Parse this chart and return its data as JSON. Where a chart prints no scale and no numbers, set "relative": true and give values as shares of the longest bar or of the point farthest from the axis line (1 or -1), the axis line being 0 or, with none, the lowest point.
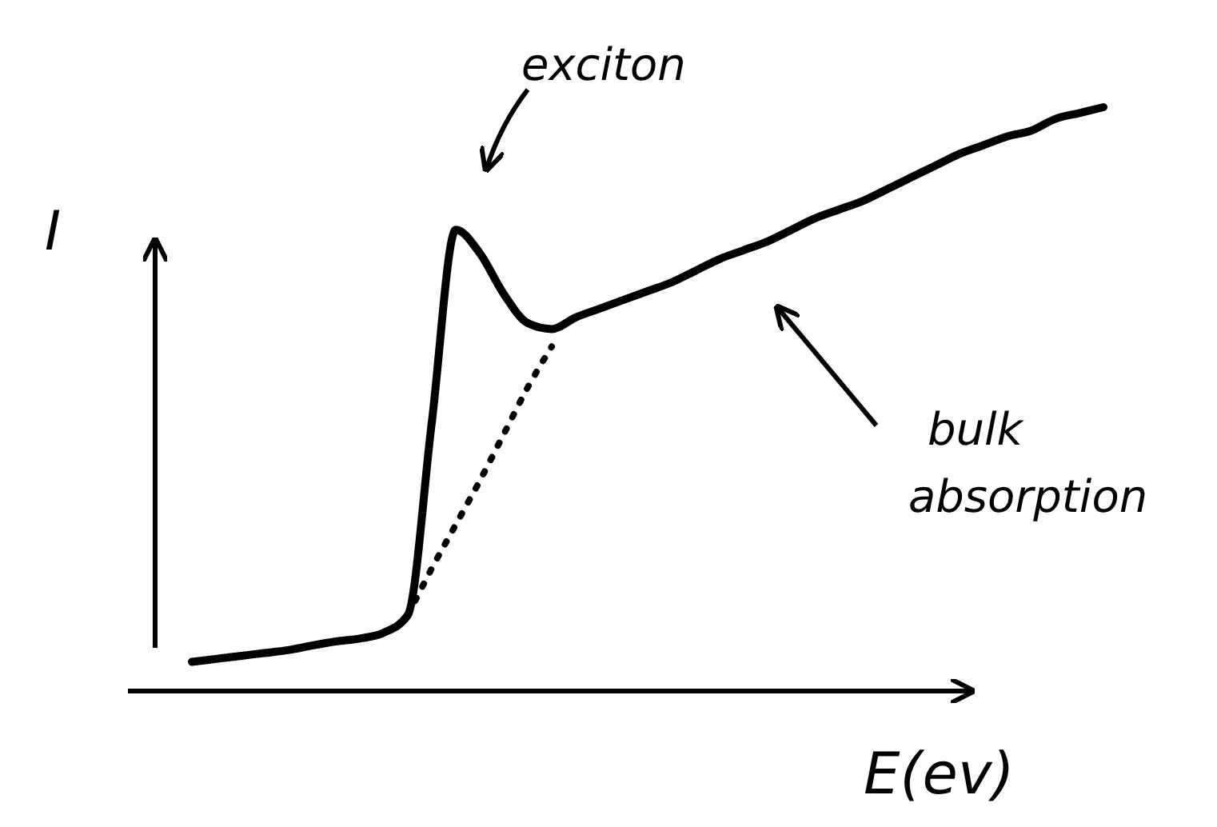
{
  "chart_data": {
    "type": "line",
    "xlabel": "E(ev)",
    "ylabel": "I",
    "relative": true,
    "categories": [
      null,
      null,
      null,
      null,
      null,
      null,
      null,
      null,
      null,
      null,
      null,
      null,
      null,
      null,
      null,
      null,
      null,
      null,
      null,
      null,
      null,
      null,
      null,
      null,
      null,
      null,
      null,
      null,
      null,
      null,
      null,
      null,
      null,
      null,
      null,
      null,
      null,
      null,
      null
    ],
    "series": [
      {
        "color": "#000000",
        "line_style": "solid",
        "values": [
          0.05,
          0.055,
          0.06,
          0.065,
          0.07,
          0.078,
          0.085,
          0.09,
          0.1,
          0.13,
          0.46,
          0.79,
          0.75,
          0.68,
          0.63,
          0.62,
          0.64,
          0.655,
          0.67,
          0.685,
          0.7,
          0.72,
          0.74,
          0.755,
          0.77,
          0.79,
          0.81,
          0.825,
          0.84,
          0.86,
          0.88,
          0.9,
          0.92,
          0.935,
          0.95,
          0.96,
          0.98,
          0.99,
          1.0
        ]
      },
      {
        "color": "#000000",
        "line_style": "dotted",
        "values": [
          null,
          null,
          null,
          null,
          null,
          null,
          null,
          null,
          null,
          0.13,
          0.21,
          0.285,
          0.36,
          0.44,
          0.52,
          0.59,
          null,
          null,
          null,
          null,
          null,
          null,
          null,
          null,
          null,
          null,
          null,
          null,
          null,
          null,
          null,
          null,
          null,
          null,
          null,
          null,
          null,
          null,
          null
        ]
      }
    ],
    "annotations": [
      "exciton",
      "bulk absorption"
    ]
  }
}
